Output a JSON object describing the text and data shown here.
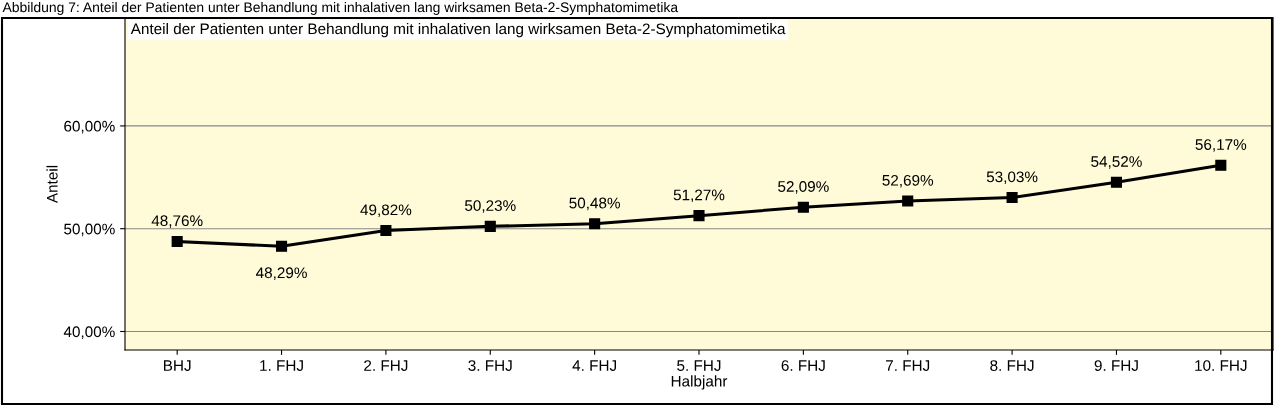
{
  "chart_data": {
    "type": "line",
    "title": "Anteil der Patienten unter Behandlung mit inhalativen lang wirksamen Beta-2-Symphatomimetika",
    "xlabel": "Halbjahr",
    "ylabel": "Anteil",
    "annotations": [
      "Abbildung 7: Anteil der Patienten unter Behandlung mit inhalativen lang wirksamen Beta-2-Symphatomimetika"
    ],
    "categories": [
      "BHJ",
      "1. FHJ",
      "2. FHJ",
      "3. FHJ",
      "4. FHJ",
      "5. FHJ",
      "6. FHJ",
      "7. FHJ",
      "8. FHJ",
      "9. FHJ",
      "10. FHJ"
    ],
    "series": [
      {
        "color": "#000000",
        "values": [
          48.76,
          48.29,
          49.82,
          50.23,
          50.48,
          51.27,
          52.09,
          52.69,
          53.03,
          54.52,
          56.17
        ],
        "value_labels": [
          "48,76%",
          "48,29%",
          "49,82%",
          "50,23%",
          "50,48%",
          "51,27%",
          "52,09%",
          "52,69%",
          "53,03%",
          "54,52%",
          "56,17%"
        ]
      }
    ],
    "ylim": [
      38.2,
      70.5
    ],
    "yticks": [
      {
        "value": 40,
        "label": "40,00%"
      },
      {
        "value": 50,
        "label": "50,00%"
      },
      {
        "value": 60,
        "label": "60,00%"
      }
    ],
    "grid": "y",
    "marker": "square",
    "line_style": "solid",
    "legend": false
  }
}
